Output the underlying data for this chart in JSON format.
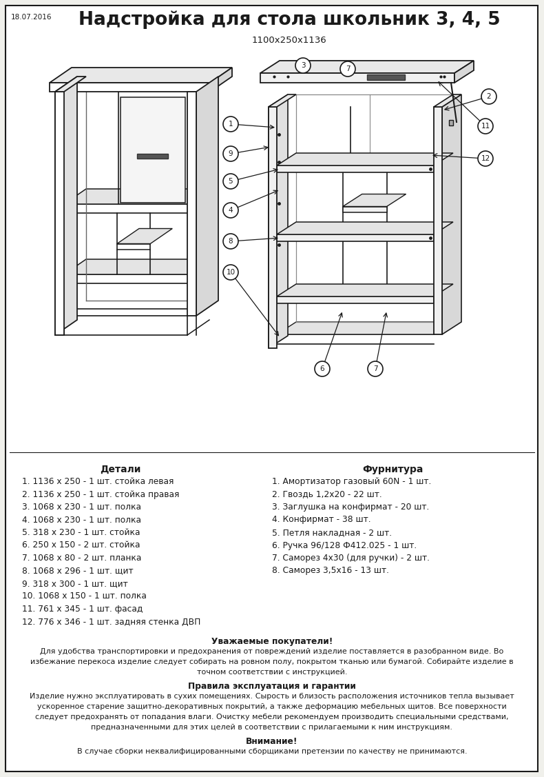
{
  "title": "Надстройка для стола школьник 3, 4, 5",
  "subtitle": "1100x250x1136",
  "date": "18.07.2016",
  "bg": "#f0f0eb",
  "lc": "#1a1a1a",
  "details_header": "Детали",
  "hardware_header": "Фурнитура",
  "details": [
    "1. 1136 х 250 - 1 шт. стойка левая",
    "2. 1136 х 250 - 1 шт. стойка правая",
    "3. 1068 х 230 - 1 шт. полка",
    "4. 1068 х 230 - 1 шт. полка",
    "5. 318 х 230 - 1 шт. стойка",
    "6. 250 х 150 - 2 шт. стойка",
    "7. 1068 х 80 - 2 шт. планка",
    "8. 1068 х 296 - 1 шт. щит",
    "9. 318 х 300 - 1 шт. щит",
    "10. 1068 х 150 - 1 шт. полка",
    "11. 761 х 345 - 1 шт. фасад",
    "12. 776 х 346 - 1 шт. задняя стенка ДВП"
  ],
  "hardware": [
    "1. Амортизатор газовый 60N - 1 шт.",
    "2. Гвоздь 1,2х20 - 22 шт.",
    "3. Заглушка на конфирмат - 20 шт.",
    "4. Конфирмат - 38 шт.",
    "5. Петля накладная - 2 шт.",
    "6. Ручка 96/128 Ф412.025 - 1 шт.",
    "7. Саморез 4х30 (для ручки) - 2 шт.",
    "8. Саморез 3,5х16 - 13 шт."
  ],
  "notice_header": "Уважаемые покупатели!",
  "notice_lines": [
    "Для удобства транспортировки и предохранения от повреждений изделие поставляется в разобранном виде. Во",
    "избежание перекоса изделие следует собирать на ровном полу, покрытом тканью или бумагой. Собирайте изделие в",
    "точном соответствии с инструкцией."
  ],
  "rules_header": "Правила эксплуатация и гарантии",
  "rules_lines": [
    "Изделие нужно эксплуатировать в сухих помещениях. Сырость и близость расположения источников тепла вызывает",
    "ускоренное старение защитно-декоративных покрытий, а также деформацию мебельных щитов. Все поверхности",
    "следует предохранять от попадания влаги. Очистку мебели рекомендуем производить специальными средствами,",
    "предназначенными для этих целей в соответствии с прилагаемыми к ним инструкциям."
  ],
  "warning_header": "Внимание!",
  "warning_text": "В случае сборки неквалифицированными сборщиками претензии по качеству не принимаются."
}
